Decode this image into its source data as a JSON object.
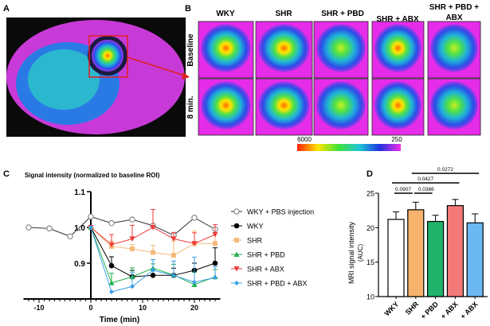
{
  "panel_labels": {
    "a": "A",
    "b": "B",
    "c": "C",
    "d": "D"
  },
  "panel_b": {
    "columns": [
      "WKY",
      "SHR",
      "SHR + PBD",
      "SHR + ABX",
      "SHR + PBD +",
      "ABX"
    ],
    "rows": [
      "Baseline",
      "8 min."
    ],
    "colorbar": {
      "max_label": "6000",
      "min_label": "250"
    }
  },
  "chart_data": [
    {
      "type": "line",
      "title": "Signal intensity (normalized to baseline ROI)",
      "xlabel": "Time (min)",
      "ylabel": "",
      "xlim": [
        -13,
        25
      ],
      "ylim": [
        0.8,
        1.1
      ],
      "xticks": [
        "-10",
        "0",
        "10",
        "20"
      ],
      "yticks": [
        "0.9",
        "1.0",
        "1.1"
      ],
      "legend": "right",
      "series": [
        {
          "name": "WKY + PBS injection",
          "color": "#888888",
          "marker": "open-circle",
          "x": [
            -12,
            -8,
            -4,
            0,
            4,
            8,
            12,
            16,
            20,
            24
          ],
          "y": [
            1.0,
            0.997,
            0.975,
            1.03,
            1.012,
            1.022,
            1.005,
            0.978,
            1.027,
            0.995
          ],
          "err": []
        },
        {
          "name": "WKY",
          "color": "#000000",
          "marker": "circle",
          "x": [
            0,
            4,
            8,
            12,
            16,
            20,
            24
          ],
          "y": [
            1.0,
            0.893,
            0.862,
            0.866,
            0.866,
            0.88,
            0.9
          ],
          "err": [
            0,
            0.025,
            0.018,
            0,
            0.02,
            0.02,
            0.043
          ]
        },
        {
          "name": "SHR",
          "color": "#f5b97a",
          "marker": "square",
          "x": [
            0,
            4,
            8,
            12,
            16,
            20,
            24
          ],
          "y": [
            1.0,
            0.947,
            0.94,
            0.93,
            0.922,
            0.955,
            0.955
          ],
          "err": [
            0,
            0.015,
            0.012,
            0.02,
            0.04,
            0.035,
            0.03
          ]
        },
        {
          "name": "SHR + PBD",
          "color": "#22b14c",
          "marker": "triangle",
          "x": [
            0,
            4,
            8,
            12,
            16,
            20,
            24
          ],
          "y": [
            1.0,
            0.845,
            0.862,
            0.886,
            0.867,
            0.84,
            0.862
          ],
          "err": [
            0,
            0.027,
            0.025,
            0.012,
            0.03,
            0.035,
            0.02
          ]
        },
        {
          "name": "SHR + ABX",
          "color": "#ee3b3b",
          "marker": "triangle-down",
          "x": [
            0,
            4,
            8,
            12,
            16,
            20,
            24
          ],
          "y": [
            1.0,
            0.952,
            0.968,
            1.0,
            0.968,
            0.955,
            0.98
          ],
          "err": [
            0,
            0.028,
            0.038,
            0.05,
            0.018,
            0.03,
            0.028
          ]
        },
        {
          "name": "SHR + PBD + ABX",
          "color": "#3aa0e6",
          "marker": "diamond",
          "x": [
            0,
            4,
            8,
            12,
            16,
            20,
            24
          ],
          "y": [
            1.0,
            0.82,
            0.835,
            0.88,
            0.866,
            0.847,
            0.86
          ],
          "err": [
            0,
            0,
            0.04,
            0.03,
            0.04,
            0.07,
            0.03
          ]
        }
      ]
    },
    {
      "type": "bar",
      "ylabel": "MRI signal intensity",
      "ylabel2": "(AUC)",
      "categories": [
        "WKY",
        "SHR",
        "+ PBD",
        "+ ABX",
        "+ ABX"
      ],
      "values": [
        21.2,
        22.6,
        20.9,
        23.2,
        20.7
      ],
      "errors": [
        1.1,
        1.1,
        0.9,
        0.9,
        1.3
      ],
      "colors": [
        "#ffffff",
        "#f7b26b",
        "#1fb36b",
        "#f47a7a",
        "#6cb8f2"
      ],
      "ylim": [
        10,
        25
      ],
      "yticks": [
        "10",
        "15",
        "20",
        "25"
      ],
      "comparisons": [
        {
          "from": 0,
          "to": 1,
          "p": "0.0907"
        },
        {
          "from": 1,
          "to": 2,
          "p": "0.0386"
        },
        {
          "from": 0,
          "to": 3,
          "p": "0.0427"
        },
        {
          "from": 1,
          "to": 4,
          "p": "0.0272"
        }
      ]
    }
  ]
}
